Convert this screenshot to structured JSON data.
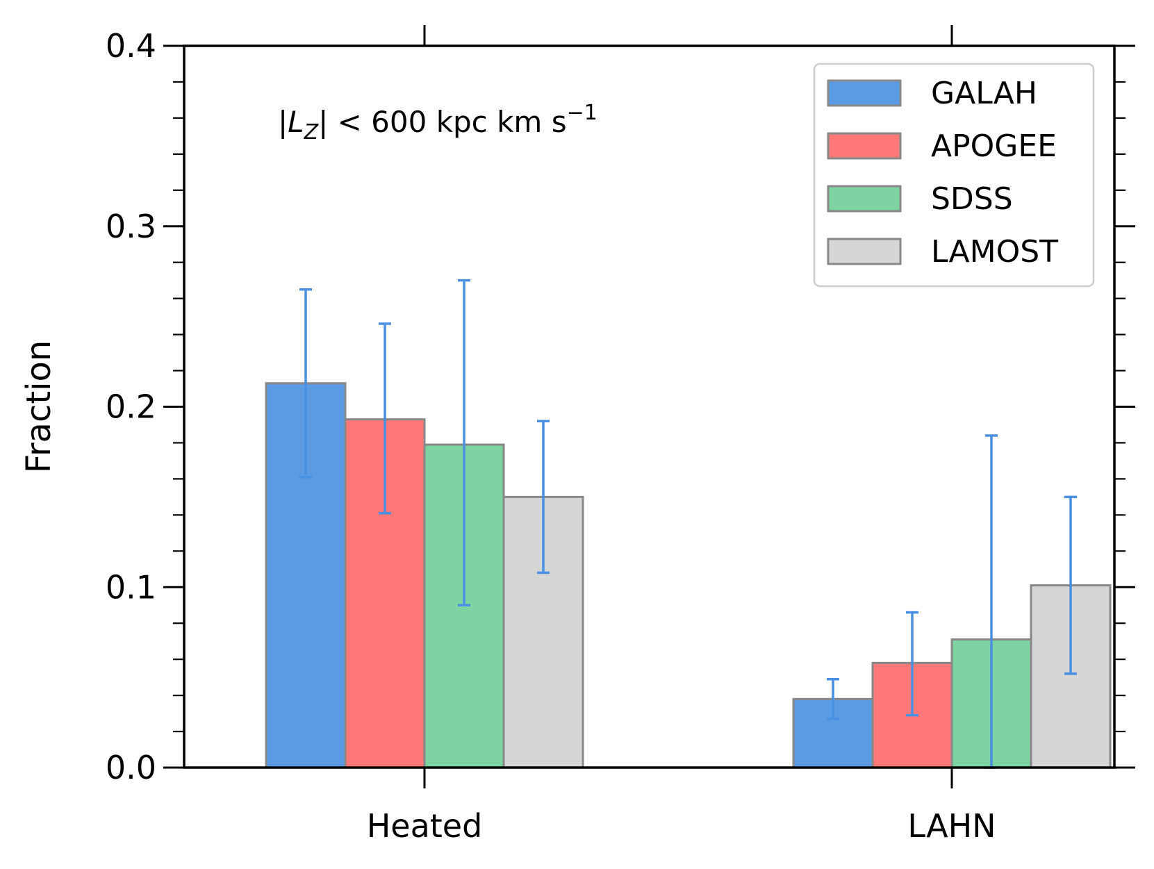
{
  "chart_data": {
    "type": "bar",
    "categories": [
      "Heated",
      "LAHN"
    ],
    "series": [
      {
        "name": "GALAH",
        "color": "#5b9be4",
        "values": [
          0.213,
          0.038
        ],
        "err_low": [
          0.161,
          0.027
        ],
        "err_high": [
          0.265,
          0.049
        ]
      },
      {
        "name": "APOGEE",
        "color": "#ff7878",
        "values": [
          0.193,
          0.058
        ],
        "err_low": [
          0.141,
          0.029
        ],
        "err_high": [
          0.246,
          0.086
        ]
      },
      {
        "name": "SDSS",
        "color": "#7dd3a1",
        "values": [
          0.179,
          0.071
        ],
        "err_low": [
          0.09,
          0.0
        ],
        "err_high": [
          0.27,
          0.184
        ]
      },
      {
        "name": "LAMOST",
        "color": "#d6d6d6",
        "values": [
          0.15,
          0.101
        ],
        "err_low": [
          0.108,
          0.052
        ],
        "err_high": [
          0.192,
          0.15
        ]
      }
    ],
    "ylabel": "Fraction",
    "xlabel": "",
    "ylim": [
      0,
      0.4
    ],
    "yticks": [
      "0.0",
      "0.1",
      "0.2",
      "0.3",
      "0.4"
    ],
    "yticks_values": [
      0,
      0.1,
      0.2,
      0.3,
      0.4
    ],
    "minor_step": 0.02,
    "errorbar_color": "#4a90e2",
    "bar_edge_color": "#888888",
    "legend_position": "top-right",
    "annotation": {
      "abs_left": "|",
      "var": "L",
      "sub": "Z",
      "abs_right": "|",
      "rest": " < 600 kpc km s",
      "sup": "−1"
    }
  }
}
